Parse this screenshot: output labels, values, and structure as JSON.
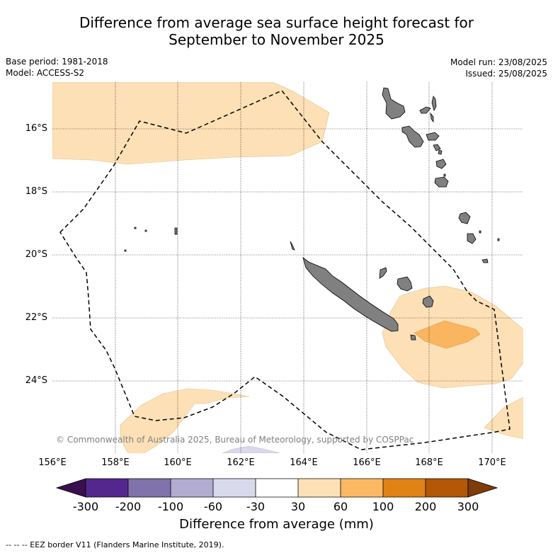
{
  "title": {
    "line1": "Difference from average sea surface height forecast for",
    "line2": "September to November 2025"
  },
  "meta": {
    "base_period": "Base period: 1981-2018",
    "model": "Model: ACCESS-S2",
    "model_run": "Model run: 23/08/2025",
    "issued": "Issued: 25/08/2025"
  },
  "map": {
    "lat_labels": [
      "16°S",
      "18°S",
      "20°S",
      "22°S",
      "24°S"
    ],
    "lon_labels": [
      "156°E",
      "158°E",
      "160°E",
      "162°E",
      "164°E",
      "166°E",
      "168°E",
      "170°E"
    ],
    "copyright": "© Commonwealth of Australia 2025, Bureau of Meteorology, supported by COSPPac",
    "colors": {
      "land": "#808080",
      "positive_30_60": "#fde0b6",
      "positive_60_100": "#f9b55f",
      "negative_30_60": "#d9d9ea",
      "eez_line": "#000000"
    }
  },
  "colorbar": {
    "ticks": [
      "-300",
      "-200",
      "-100",
      "-60",
      "-30",
      "30",
      "60",
      "100",
      "200",
      "300"
    ],
    "colors": [
      "#3b0f4f",
      "#54278f",
      "#8073ac",
      "#b2abd2",
      "#d8daeb",
      "#ffffff",
      "#fee0b6",
      "#fdb863",
      "#e08214",
      "#b35806",
      "#7f3b08"
    ],
    "label": "Difference from average (mm)"
  },
  "footnote": "-- -- -- EEZ border V11 (Flanders Marine Institute, 2019)."
}
